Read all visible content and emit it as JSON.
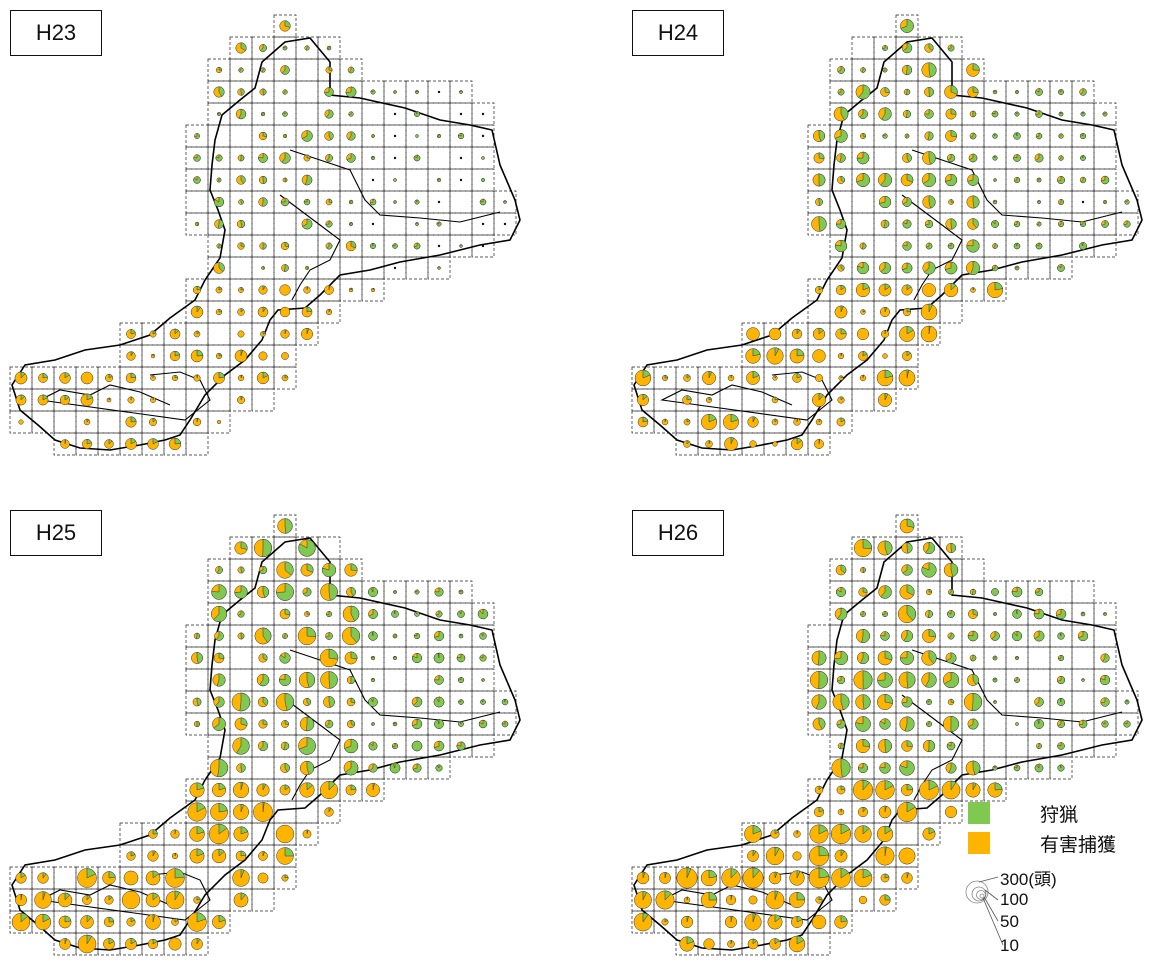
{
  "panels": [
    {
      "label": "H23",
      "pattern": "low"
    },
    {
      "label": "H24",
      "pattern": "mid"
    },
    {
      "label": "H25",
      "pattern": "high"
    },
    {
      "label": "H26",
      "pattern": "high2"
    }
  ],
  "legend": {
    "hunting": {
      "label": "狩猟",
      "color": "#80c850"
    },
    "damage": {
      "label": "有害捕獲",
      "color": "#ffb400"
    },
    "size_labels": [
      "300(頭)",
      "100",
      "50",
      "10"
    ]
  },
  "colors": {
    "grid": "#222",
    "border": "#000",
    "pie_stroke": "#333"
  }
}
